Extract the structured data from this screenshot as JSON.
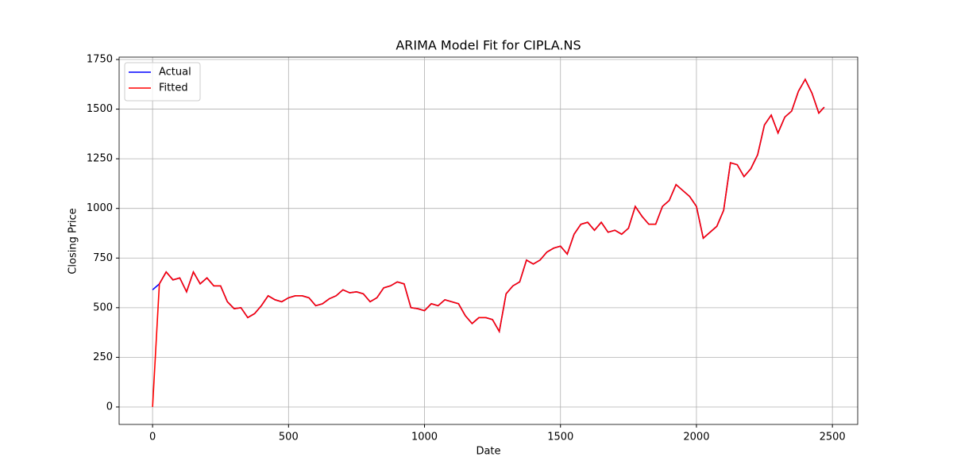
{
  "chart_data": {
    "type": "line",
    "title": "ARIMA Model Fit for CIPLA.NS",
    "x_label": "Date",
    "y_label": "Closing Price",
    "x": [
      0,
      25,
      50,
      75,
      100,
      125,
      150,
      175,
      200,
      225,
      250,
      275,
      300,
      325,
      350,
      375,
      400,
      425,
      450,
      475,
      500,
      525,
      550,
      575,
      600,
      625,
      650,
      675,
      700,
      725,
      750,
      775,
      800,
      825,
      850,
      875,
      900,
      925,
      950,
      975,
      1000,
      1025,
      1050,
      1075,
      1100,
      1125,
      1150,
      1175,
      1200,
      1225,
      1250,
      1275,
      1300,
      1325,
      1350,
      1375,
      1400,
      1425,
      1450,
      1475,
      1500,
      1525,
      1550,
      1575,
      1600,
      1625,
      1650,
      1675,
      1700,
      1725,
      1750,
      1775,
      1800,
      1825,
      1850,
      1875,
      1900,
      1925,
      1950,
      1975,
      2000,
      2025,
      2050,
      2075,
      2100,
      2125,
      2150,
      2175,
      2200,
      2225,
      2250,
      2275,
      2300,
      2325,
      2350,
      2375,
      2400,
      2425,
      2450,
      2470
    ],
    "series": [
      {
        "name": "Actual",
        "color": "#0000ff",
        "values": [
          590,
          620,
          680,
          640,
          650,
          580,
          680,
          620,
          650,
          610,
          610,
          530,
          495,
          500,
          450,
          470,
          510,
          560,
          540,
          530,
          550,
          560,
          560,
          550,
          510,
          520,
          545,
          560,
          590,
          575,
          580,
          570,
          530,
          550,
          600,
          610,
          630,
          620,
          500,
          495,
          485,
          520,
          510,
          540,
          530,
          520,
          460,
          420,
          450,
          450,
          440,
          380,
          570,
          610,
          630,
          740,
          720,
          740,
          780,
          800,
          810,
          770,
          870,
          920,
          930,
          890,
          930,
          880,
          890,
          870,
          900,
          1010,
          960,
          920,
          920,
          1010,
          1040,
          1120,
          1090,
          1060,
          1010,
          850,
          880,
          910,
          990,
          1230,
          1220,
          1160,
          1200,
          1270,
          1420,
          1470,
          1380,
          1460,
          1490,
          1590,
          1650,
          1580,
          1480,
          1510
        ]
      },
      {
        "name": "Fitted",
        "color": "#ff0000",
        "values": [
          0,
          620,
          680,
          640,
          650,
          580,
          680,
          620,
          650,
          610,
          610,
          530,
          495,
          500,
          450,
          470,
          510,
          560,
          540,
          530,
          550,
          560,
          560,
          550,
          510,
          520,
          545,
          560,
          590,
          575,
          580,
          570,
          530,
          550,
          600,
          610,
          630,
          620,
          500,
          495,
          485,
          520,
          510,
          540,
          530,
          520,
          460,
          420,
          450,
          450,
          440,
          380,
          570,
          610,
          630,
          740,
          720,
          740,
          780,
          800,
          810,
          770,
          870,
          920,
          930,
          890,
          930,
          880,
          890,
          870,
          900,
          1010,
          960,
          920,
          920,
          1010,
          1040,
          1120,
          1090,
          1060,
          1010,
          850,
          880,
          910,
          990,
          1230,
          1220,
          1160,
          1200,
          1270,
          1420,
          1470,
          1380,
          1460,
          1490,
          1590,
          1650,
          1580,
          1480,
          1510
        ]
      }
    ],
    "xlim": [
      -123,
      2593
    ],
    "ylim": [
      -88,
      1762
    ],
    "xticks": [
      0,
      500,
      1000,
      1500,
      2000,
      2500
    ],
    "yticks": [
      0,
      250,
      500,
      750,
      1000,
      1250,
      1500,
      1750
    ],
    "grid": true,
    "legend": "upper left"
  }
}
